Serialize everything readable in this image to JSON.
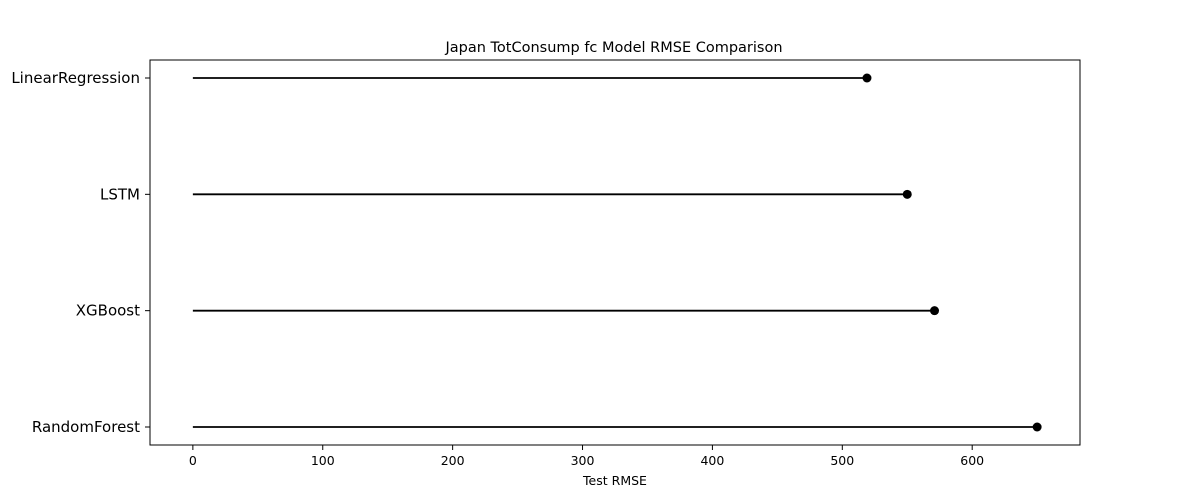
{
  "chart_data": {
    "type": "lollipop",
    "title": "Japan TotConsump fc Model RMSE Comparison",
    "xlabel": "Test RMSE",
    "ylabel": "",
    "categories": [
      "LinearRegression",
      "LSTM",
      "XGBoost",
      "RandomForest"
    ],
    "values": [
      519,
      550,
      571,
      650
    ],
    "xlim": [
      -33,
      683
    ],
    "xticks": [
      0,
      100,
      200,
      300,
      400,
      500,
      600
    ],
    "grid": false,
    "legend": "none",
    "colors": {
      "stem": "#000000",
      "marker": "#000000",
      "frame": "#000000"
    }
  }
}
